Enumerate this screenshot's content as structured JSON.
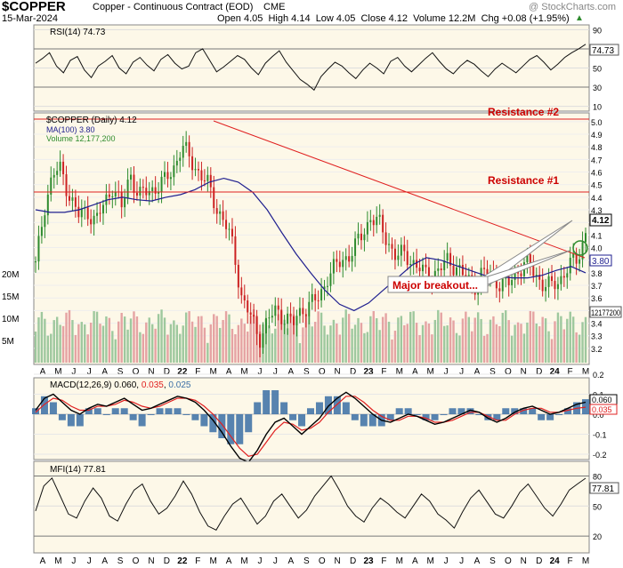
{
  "header": {
    "symbol": "$COPPER",
    "name": "Copper - Continuous Contract (EOD)",
    "exchange": "CME",
    "date": "15-Mar-2024",
    "watermark": "@ StockCharts.com",
    "ohlc_text": "Open 4.05  High 4.14  Low 4.05  Close 4.12  Volume 12.2M  Chg +0.08 (+1.95%)",
    "chg_marker": "▲"
  },
  "colors": {
    "up_candle": "#2e8b2e",
    "down_candle": "#cc2222",
    "ma_line": "#1f1f8f",
    "resistance": "#e02020",
    "panel_bg": "#fdf8e8",
    "volume_up": "#9ec89e",
    "volume_down": "#e5a3a3",
    "macd_hist": "#3a6fa5"
  },
  "rsi_panel": {
    "legend": "RSI(14) 74.73",
    "current_tag": "74.73",
    "ticks": [
      90,
      70,
      50,
      30,
      10
    ],
    "series": [
      55,
      60,
      66,
      52,
      45,
      58,
      62,
      48,
      40,
      52,
      57,
      63,
      50,
      44,
      56,
      61,
      53,
      47,
      59,
      64,
      55,
      49,
      52,
      66,
      70,
      58,
      46,
      51,
      57,
      63,
      59,
      50,
      43,
      55,
      62,
      68,
      56,
      47,
      38,
      33,
      27,
      41,
      49,
      56,
      52,
      45,
      39,
      48,
      55,
      50,
      44,
      57,
      61,
      52,
      46,
      53,
      60,
      66,
      57,
      49,
      44,
      52,
      58,
      54,
      47,
      41,
      49,
      55,
      50,
      45,
      52,
      59,
      63,
      56,
      48,
      54,
      61,
      66,
      70,
      74.73
    ]
  },
  "price_panel": {
    "legend_title": "$COPPER (Daily) 4.12",
    "legend_ma": "MA(100) 3.80",
    "legend_volume": "Volume 12,177,200",
    "price_ticks": [
      "5.0",
      "4.9",
      "4.8",
      "4.7",
      "4.6",
      "4.5",
      "4.4",
      "4.3",
      "4.2",
      "4.1",
      "4.0",
      "3.9",
      "3.8",
      "3.7",
      "3.6",
      "3.5",
      "3.4",
      "3.3",
      "3.2"
    ],
    "volume_ticks": [
      "20M",
      "15M",
      "10M",
      "5M"
    ],
    "last_price_tag": "4.12",
    "ma_tag": "3.80",
    "volume_tag": "12177200",
    "resistance_1": {
      "label": "Resistance #1",
      "price": 4.35
    },
    "resistance_2": {
      "label": "Resistance #2",
      "price": 5.02
    },
    "breakout_label": "Major breakout...",
    "ma100": [
      4.3,
      4.28,
      4.28,
      4.3,
      4.34,
      4.38,
      4.4,
      4.38,
      4.37,
      4.4,
      4.42,
      4.46,
      4.52,
      4.55,
      4.52,
      4.44,
      4.3,
      4.12,
      3.95,
      3.8,
      3.66,
      3.55,
      3.5,
      3.56,
      3.66,
      3.76,
      3.86,
      3.92,
      3.9,
      3.86,
      3.82,
      3.78,
      3.77,
      3.76,
      3.76,
      3.78,
      3.82,
      3.85,
      3.8
    ],
    "closes": [
      3.85,
      4.32,
      4.58,
      4.62,
      4.4,
      4.25,
      4.3,
      4.2,
      4.35,
      4.5,
      4.3,
      4.6,
      4.4,
      4.45,
      4.48,
      4.52,
      4.63,
      4.8,
      4.7,
      4.6,
      4.5,
      4.33,
      4.2,
      4.0,
      3.6,
      3.45,
      3.28,
      3.42,
      3.5,
      3.45,
      3.39,
      3.52,
      3.55,
      3.6,
      3.78,
      3.85,
      3.92,
      3.98,
      4.1,
      4.25,
      4.18,
      4.05,
      3.92,
      3.95,
      3.88,
      3.8,
      3.78,
      3.82,
      3.9,
      3.85,
      3.75,
      3.7,
      3.8,
      3.78,
      3.72,
      3.7,
      3.82,
      3.88,
      3.8,
      3.72,
      3.68,
      3.75,
      3.85,
      3.9,
      4.12
    ]
  },
  "macd_panel": {
    "legend_prefix": "MACD(12,26,9) 0.060, ",
    "legend_signal": "0.035",
    "legend_sep": ", ",
    "legend_hist": "0.025",
    "ticks": [
      "0.2",
      "0.1",
      "0.0",
      "-0.1",
      "-0.2"
    ],
    "tag_macd": "0.060",
    "tag_signal": "0.035",
    "macd": [
      0.02,
      0.08,
      0.1,
      0.06,
      0.02,
      0.0,
      0.03,
      0.05,
      0.04,
      0.06,
      0.08,
      0.05,
      0.02,
      0.03,
      0.05,
      0.07,
      0.09,
      0.08,
      0.06,
      0.02,
      -0.03,
      -0.09,
      -0.16,
      -0.22,
      -0.24,
      -0.18,
      -0.1,
      -0.04,
      -0.02,
      -0.06,
      -0.1,
      -0.06,
      -0.02,
      0.04,
      0.08,
      0.11,
      0.08,
      0.04,
      0.0,
      -0.03,
      -0.04,
      -0.02,
      0.0,
      -0.01,
      -0.03,
      -0.05,
      -0.04,
      -0.02,
      0.0,
      0.02,
      0.01,
      -0.02,
      -0.04,
      -0.02,
      0.01,
      0.03,
      0.04,
      0.02,
      0.0,
      0.01,
      0.03,
      0.05,
      0.06
    ],
    "signal": [
      0.01,
      0.05,
      0.08,
      0.07,
      0.04,
      0.02,
      0.02,
      0.04,
      0.04,
      0.05,
      0.07,
      0.06,
      0.04,
      0.03,
      0.04,
      0.06,
      0.08,
      0.08,
      0.07,
      0.04,
      0.0,
      -0.05,
      -0.11,
      -0.17,
      -0.21,
      -0.2,
      -0.14,
      -0.08,
      -0.04,
      -0.05,
      -0.08,
      -0.07,
      -0.04,
      0.01,
      0.05,
      0.09,
      0.09,
      0.06,
      0.02,
      -0.01,
      -0.03,
      -0.03,
      -0.01,
      -0.01,
      -0.02,
      -0.04,
      -0.04,
      -0.03,
      -0.01,
      0.01,
      0.01,
      -0.01,
      -0.03,
      -0.03,
      0.0,
      0.02,
      0.03,
      0.03,
      0.01,
      0.01,
      0.02,
      0.03,
      0.035
    ]
  },
  "mfi_panel": {
    "legend": "MFI(14) 77.81",
    "current_tag": "77.81",
    "ticks": [
      "80",
      "50",
      "20"
    ],
    "series": [
      45,
      70,
      78,
      60,
      42,
      38,
      55,
      68,
      58,
      40,
      35,
      52,
      66,
      72,
      55,
      42,
      48,
      60,
      75,
      62,
      44,
      30,
      26,
      40,
      52,
      58,
      45,
      32,
      40,
      55,
      62,
      50,
      38,
      46,
      60,
      70,
      80,
      66,
      50,
      40,
      34,
      48,
      58,
      52,
      44,
      38,
      50,
      62,
      55,
      42,
      36,
      28,
      44,
      58,
      66,
      54,
      42,
      38,
      50,
      64,
      72,
      60,
      48,
      40,
      52,
      66,
      72,
      77.81
    ]
  },
  "x_axis": {
    "labels": [
      "A",
      "M",
      "J",
      "J",
      "A",
      "S",
      "O",
      "N",
      "D",
      "22",
      "F",
      "M",
      "A",
      "M",
      "J",
      "J",
      "A",
      "S",
      "O",
      "N",
      "D",
      "23",
      "F",
      "M",
      "A",
      "M",
      "J",
      "J",
      "A",
      "S",
      "O",
      "N",
      "D",
      "24",
      "F",
      "M"
    ],
    "bold_labels": [
      "22",
      "23",
      "24"
    ]
  }
}
